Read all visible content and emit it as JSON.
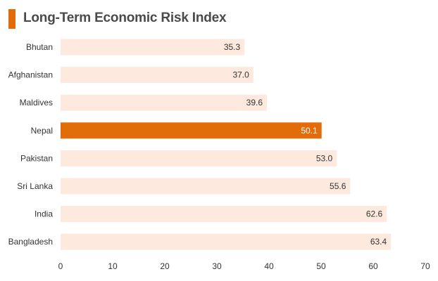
{
  "title": "Long-Term Economic Risk Index",
  "colors": {
    "accent": "#e36c0a",
    "bar_default": "#fde9dd",
    "bar_highlight": "#e36c0a",
    "label_default": "#333333",
    "label_highlight": "#ffffff"
  },
  "chart_data": {
    "type": "bar",
    "orientation": "horizontal",
    "title": "Long-Term Economic Risk Index",
    "xlabel": "",
    "ylabel": "",
    "categories": [
      "Bhutan",
      "Afghanistan",
      "Maldives",
      "Nepal",
      "Pakistan",
      "Sri Lanka",
      "India",
      "Bangladesh"
    ],
    "values": [
      35.3,
      37.0,
      39.6,
      50.1,
      53.0,
      55.6,
      62.6,
      63.4
    ],
    "value_labels": [
      "35.3",
      "37.0",
      "39.6",
      "50.1",
      "53.0",
      "55.6",
      "62.6",
      "63.4"
    ],
    "highlight": "Nepal",
    "xlim": [
      0,
      70
    ],
    "xticks": [
      0,
      10,
      20,
      30,
      40,
      50,
      60,
      70
    ],
    "grid": false,
    "legend": "none"
  }
}
